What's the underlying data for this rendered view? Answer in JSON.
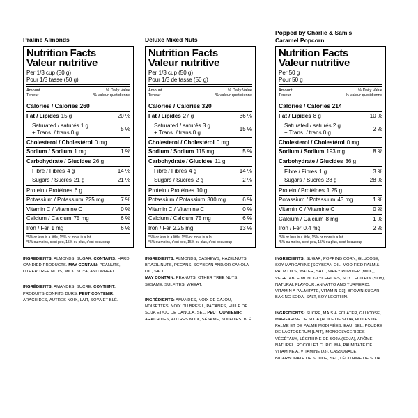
{
  "labels": [
    {
      "title": "Praline Almonds",
      "nf_en": "Nutrition Facts",
      "nf_fr": "Valeur nutritive",
      "serving_en": "Per 1/3 cup (50 g)",
      "serving_fr": "Pour 1/3 tasse (50 g)",
      "amount_en": "Amount",
      "amount_fr": "Teneur",
      "dv_en": "% Daily Value",
      "dv_fr": "% valeur quotidienne",
      "calories": "Calories / Calories 260",
      "rows": {
        "fat": {
          "name": "Fat / Lipides",
          "value": "15 g",
          "dv": "20 %"
        },
        "sat": {
          "line1": "Saturated / saturés 1 g",
          "line2": "+ Trans. / trans 0 g",
          "dv": "5 %"
        },
        "chol": {
          "name": "Cholesterol / Cholestérol",
          "value": "0 mg",
          "dv": ""
        },
        "sodium": {
          "name": "Sodium / Sodium",
          "value": "1 mg",
          "dv": "1 %"
        },
        "carb": {
          "name": "Carbohydrate / Glucides",
          "value": "26 g",
          "dv": ""
        },
        "fibre": {
          "name": "Fibre / Fibres",
          "value": "4 g",
          "dv": "14 %"
        },
        "sugars": {
          "name": "Sugars / Sucres",
          "value": "21 g",
          "dv": "21 %"
        },
        "protein": {
          "name": "Protein / Protéines",
          "value": "6 g",
          "dv": ""
        },
        "potassium": {
          "name": "Potassium / Potassium",
          "value": "225 mg",
          "dv": "7 %"
        },
        "vitc": {
          "name": "Vitamin C / Vitamine C",
          "value": "",
          "dv": "0 %"
        },
        "calcium": {
          "name": "Calcium / Calcium",
          "value": "75 mg",
          "dv": "6 %"
        },
        "iron": {
          "name": "Iron / Fer",
          "value": "1 mg",
          "dv": "6 %"
        }
      },
      "footnote_en": "*5% or less is a little, 15% or more is a lot",
      "footnote_fr": "*5% ou moins, c'est peu, 15% ou plus, c'est beaucoup",
      "ingredients": [
        {
          "gap": false,
          "segments": [
            {
              "b": true,
              "t": "INGREDIENTS:"
            },
            {
              "b": false,
              "t": " ALMONDS, SUGAR. "
            },
            {
              "b": true,
              "t": "CONTAINS:"
            },
            {
              "b": false,
              "t": " HARD CANDIED PRODUCTS. "
            },
            {
              "b": true,
              "t": "MAY CONTAIN:"
            },
            {
              "b": false,
              "t": " PEANUTS, OTHER TREE NUTS, MILK, SOYA, AND WHEAT."
            }
          ]
        },
        {
          "gap": true,
          "segments": [
            {
              "b": true,
              "t": "INGRÉDIENTS:"
            },
            {
              "b": false,
              "t": " AMANDES, SUCRE. "
            },
            {
              "b": true,
              "t": "CONTIENT:"
            },
            {
              "b": false,
              "t": " PRODUITS CONFITS DURS. "
            },
            {
              "b": true,
              "t": "PEUT CONTENIR:"
            },
            {
              "b": false,
              "t": " ARACHIDES, AUTRES NOIX, LAIT, SOYA ET BLÉ."
            }
          ]
        }
      ]
    },
    {
      "title": "Deluxe Mixed Nuts",
      "nf_en": "Nutrition Facts",
      "nf_fr": "Valeur nutritive",
      "serving_en": "Per 1/3 cup (50 g)",
      "serving_fr": "Pour 1/3 de tasse (50 g)",
      "amount_en": "Amount",
      "amount_fr": "Teneur",
      "dv_en": "% Daily Value",
      "dv_fr": "% valeur quotidienne",
      "calories": "Calories / Calories 320",
      "rows": {
        "fat": {
          "name": "Fat / Lipides",
          "value": "27 g",
          "dv": "36 %"
        },
        "sat": {
          "line1": "Saturated / saturés 3 g",
          "line2": "+ Trans. / trans 0 g",
          "dv": "15 %"
        },
        "chol": {
          "name": "Cholesterol / Cholestérol",
          "value": "0 mg",
          "dv": ""
        },
        "sodium": {
          "name": "Sodium / Sodium",
          "value": "115 mg",
          "dv": "5 %"
        },
        "carb": {
          "name": "Carbohydrate / Glucides",
          "value": "11 g",
          "dv": ""
        },
        "fibre": {
          "name": "Fibre / Fibres",
          "value": "4 g",
          "dv": "14 %"
        },
        "sugars": {
          "name": "Sugars / Sucres",
          "value": "2 g",
          "dv": "2 %"
        },
        "protein": {
          "name": "Protein / Protéines",
          "value": "10 g",
          "dv": ""
        },
        "potassium": {
          "name": "Potassium / Potassium",
          "value": "300 mg",
          "dv": "6 %"
        },
        "vitc": {
          "name": "Vitamin C / Vitamine C",
          "value": "",
          "dv": "0 %"
        },
        "calcium": {
          "name": "Calcium / Calcium",
          "value": "75 mg",
          "dv": "6 %"
        },
        "iron": {
          "name": "Iron / Fer",
          "value": "2.25 mg",
          "dv": "13 %"
        }
      },
      "footnote_en": "*5% or less is a little, 15% or more is a lot",
      "footnote_fr": "*5% ou moins, c'est peu, 15% ou plus, c'est beaucoup",
      "ingredients": [
        {
          "gap": false,
          "segments": [
            {
              "b": true,
              "t": "INGREDIENTS:"
            },
            {
              "b": false,
              "t": " ALMONDS, CASHEWS, HAZELNUTS, BRAZIL NUTS, PECANS, SOYBEAN AND/OR CANOLA OIL, SALT."
            }
          ]
        },
        {
          "gap": false,
          "segments": [
            {
              "b": true,
              "t": "MAY CONTAIN:"
            },
            {
              "b": false,
              "t": " PEANUTS, OTHER TREE NUTS, SESAME, SULFITES, WHEAT."
            }
          ]
        },
        {
          "gap": true,
          "segments": [
            {
              "b": true,
              "t": "INGRÉDIENTS:"
            },
            {
              "b": false,
              "t": " AMANDES, NOIX DE CAJOU, NOISETTES, NOIX DU BRÉSIL, PACANES, HUILE DE SOJA ET/OU DE CANOLA, SEL. "
            },
            {
              "b": true,
              "t": "PEUT CONTENIR:"
            },
            {
              "b": false,
              "t": " ARACHIDES, AUTRES NOIX, SÉSAME, SULFITES, BLÉ."
            }
          ]
        }
      ]
    },
    {
      "title": "Popped by Charlie & Sam's\nCaramel Popcorn",
      "nf_en": "Nutrition Facts",
      "nf_fr": "Valeur nutritive",
      "serving_en": "Per 50 g",
      "serving_fr": "Pour 50 g",
      "amount_en": "Amount",
      "amount_fr": "Teneur",
      "dv_en": "% Daily Value",
      "dv_fr": "% valeur quotidienne",
      "calories": "Calories / Calories 214",
      "rows": {
        "fat": {
          "name": "Fat / Lipides",
          "value": "8 g",
          "dv": "10 %"
        },
        "sat": {
          "line1": "Saturated / saturés 2 g",
          "line2": "+ Trans. / trans 0 g",
          "dv": "2 %"
        },
        "chol": {
          "name": "Cholesterol / Cholestérol",
          "value": "0 mg",
          "dv": ""
        },
        "sodium": {
          "name": "Sodium / Sodium",
          "value": "193 mg",
          "dv": "8 %"
        },
        "carb": {
          "name": "Carbohydrate / Glucides",
          "value": "36 g",
          "dv": ""
        },
        "fibre": {
          "name": "Fibre / Fibres",
          "value": "1 g",
          "dv": "3 %"
        },
        "sugars": {
          "name": "Sugars / Sucres",
          "value": "28 g",
          "dv": "28 %"
        },
        "protein": {
          "name": "Protein / Protéines",
          "value": "1.25 g",
          "dv": ""
        },
        "potassium": {
          "name": "Potassium / Potassium",
          "value": "43 mg",
          "dv": "1 %"
        },
        "vitc": {
          "name": "Vitamin C / Vitamine C",
          "value": "",
          "dv": "0 %"
        },
        "calcium": {
          "name": "Calcium / Calcium",
          "value": "8 mg",
          "dv": "1 %"
        },
        "iron": {
          "name": "Iron / Fer",
          "value": "0.4 mg",
          "dv": "2 %"
        }
      },
      "footnote_en": "*5% or less is a little, 15% or more is a lot",
      "footnote_fr": "*5% ou moins, c'est peu, 15% ou plus, c'est beaucoup",
      "ingredients": [
        {
          "gap": false,
          "segments": [
            {
              "b": true,
              "t": "INGREDIENTS:"
            },
            {
              "b": false,
              "t": " SUGAR, POPPING CORN, GLUCOSE, SOY MARGARINE [SOYBEAN OIL, MODIFIED PALM & PALM OILS, WATER, SALT, WHEY POWDER [MILK], VEGETABLE MONOGLYCERIDES, SOY LECITHIN (SOY), NATURAL FLAVOUR, ANNATTO AND TURMERIC, VITAMIN A PALMITATE, VITAMIN D3], BROWN SUGAR, BAKING SODA, SALT, SOY LECITHIN."
            }
          ]
        },
        {
          "gap": true,
          "segments": [
            {
              "b": true,
              "t": "INGRÉDIENTS:"
            },
            {
              "b": false,
              "t": " SUCRE, MAÏS À ÉCLATER, GLUCOSE, MARGARINE DE SOJA (HUILE DE SOJA, HUILES DE PALME ET DE PALME MODIFIÉES, EAU, SEL, POUDRE DE LACTOSÉRUM [LAIT], MONOGLYCÉRIDES VÉGÉTAUX, LÉCITHINE DE SOJA (SOJA), ARÔME NATUREL, ROCOU ET CURCUMA, PALMITATE DE VITAMINE A, VITAMINE D3), CASSONADE, BICARBONATE DE SOUDE, SEL, LÉCITHINE DE SOJA."
            }
          ]
        }
      ]
    }
  ]
}
